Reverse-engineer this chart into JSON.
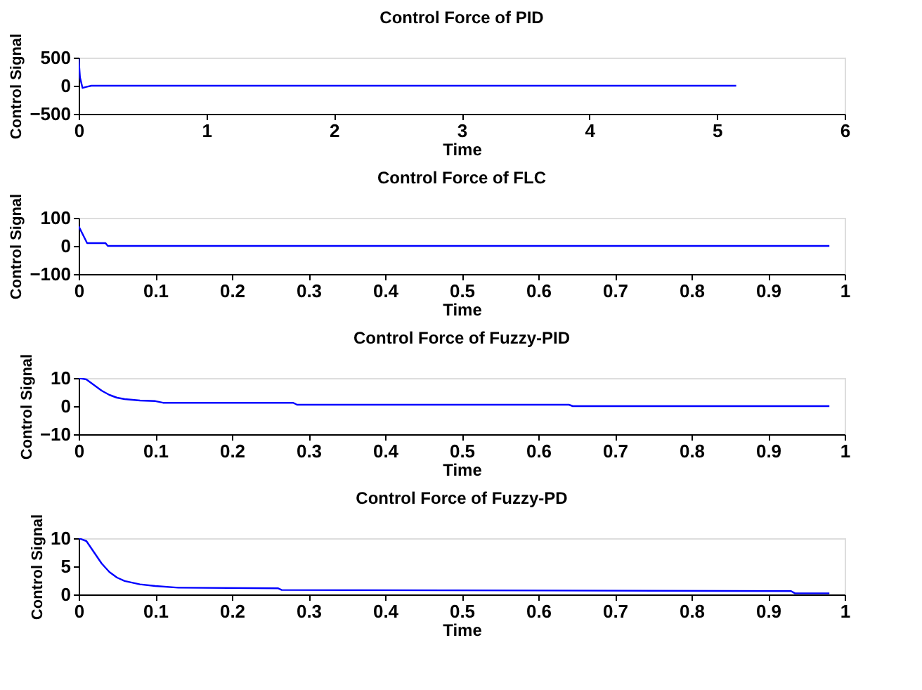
{
  "chart_data": [
    {
      "type": "line",
      "title": "Control Force of PID",
      "xlabel": "Time",
      "ylabel": "Control Signal",
      "xlim": [
        0,
        6
      ],
      "xticks": [
        0,
        1,
        2,
        3,
        4,
        5,
        6
      ],
      "ylim": [
        -500,
        500
      ],
      "yticks": [
        -500,
        0,
        500
      ],
      "grid": false,
      "series": [
        {
          "color": "#0000ff",
          "x": [
            0,
            0.01,
            0.03,
            0.06,
            0.1,
            0.2,
            5.15
          ],
          "values": [
            480,
            150,
            -40,
            -20,
            0,
            0,
            0
          ]
        }
      ]
    },
    {
      "type": "line",
      "title": "Control Force of FLC",
      "xlabel": "Time",
      "ylabel": "Control Signal",
      "xlim": [
        0,
        1
      ],
      "xticks": [
        0,
        0.1,
        0.2,
        0.3,
        0.4,
        0.5,
        0.6,
        0.7,
        0.8,
        0.9,
        1
      ],
      "ylim": [
        -100,
        100
      ],
      "yticks": [
        -100,
        0,
        100
      ],
      "grid": false,
      "series": [
        {
          "color": "#0000ff",
          "x": [
            0,
            0.011,
            0.035,
            0.038,
            0.98
          ],
          "values": [
            70,
            10,
            10,
            0,
            0
          ]
        }
      ]
    },
    {
      "type": "line",
      "title": "Control Force of Fuzzy-PID",
      "xlabel": "Time",
      "ylabel": "Control Signal",
      "xlim": [
        0,
        1
      ],
      "xticks": [
        0,
        0.1,
        0.2,
        0.3,
        0.4,
        0.5,
        0.6,
        0.7,
        0.8,
        0.9,
        1
      ],
      "ylim": [
        -10,
        10
      ],
      "yticks": [
        -10,
        0,
        10
      ],
      "grid": false,
      "series": [
        {
          "color": "#0000ff",
          "x": [
            0,
            0.01,
            0.02,
            0.03,
            0.04,
            0.05,
            0.06,
            0.08,
            0.1,
            0.11,
            0.28,
            0.285,
            0.64,
            0.645,
            0.98
          ],
          "values": [
            10,
            9.5,
            7.5,
            5.5,
            4,
            3,
            2.5,
            2,
            1.8,
            1.2,
            1.2,
            0.5,
            0.5,
            0,
            0
          ]
        }
      ]
    },
    {
      "type": "line",
      "title": "Control Force of Fuzzy-PD",
      "xlabel": "Time",
      "ylabel": "Control Signal",
      "xlim": [
        0,
        1
      ],
      "xticks": [
        0,
        0.1,
        0.2,
        0.3,
        0.4,
        0.5,
        0.6,
        0.7,
        0.8,
        0.9,
        1
      ],
      "ylim": [
        0,
        10
      ],
      "yticks": [
        0,
        5,
        10
      ],
      "grid": false,
      "series": [
        {
          "color": "#0000ff",
          "x": [
            0,
            0.01,
            0.02,
            0.03,
            0.04,
            0.05,
            0.06,
            0.08,
            0.1,
            0.13,
            0.26,
            0.265,
            0.93,
            0.935,
            0.98
          ],
          "values": [
            10,
            9.5,
            7.5,
            5.5,
            4,
            3,
            2.4,
            1.8,
            1.5,
            1.2,
            1.1,
            0.8,
            0.6,
            0.2,
            0.2
          ]
        }
      ]
    }
  ]
}
